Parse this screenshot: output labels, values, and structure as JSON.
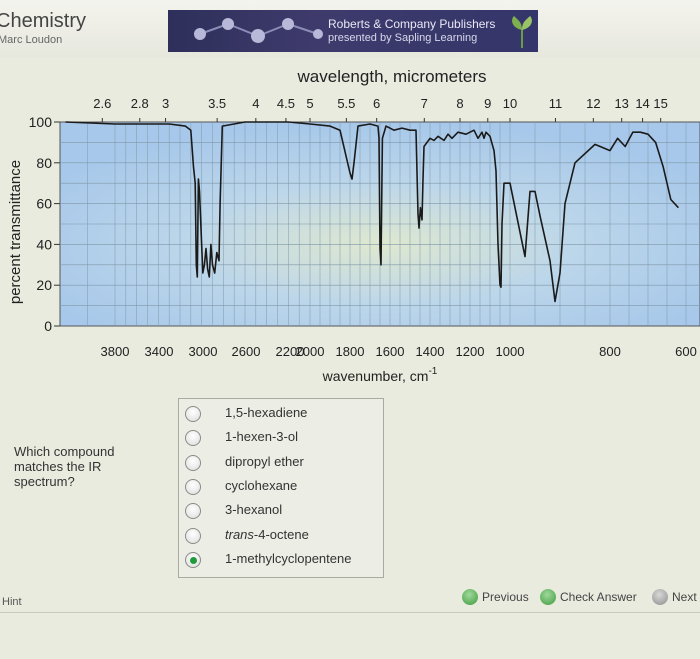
{
  "header": {
    "book_title": "Chemistry",
    "book_author": "Marc Loudon",
    "publisher_line1": "Roberts & Company Publishers",
    "publisher_line2": "presented by Sapling Learning",
    "logo_icon": "leaf-icon"
  },
  "chart_data": {
    "type": "line",
    "title": "",
    "top_axis_label": "wavelength, micrometers",
    "top_ticks": [
      "2.6",
      "2.8",
      "3",
      "3.5",
      "4",
      "4.5",
      "5",
      "5.5",
      "6",
      "7",
      "8",
      "9",
      "10",
      "11",
      "12",
      "13",
      "14",
      "15"
    ],
    "xlabel": "wavenumber, cm",
    "xlabel_superscript": "-1",
    "x_ticks": [
      "3800",
      "3400",
      "3000",
      "2600",
      "2200",
      "2000",
      "1800",
      "1600",
      "1400",
      "1200",
      "1000",
      "800",
      "600"
    ],
    "ylabel": "percent transmittance",
    "y_ticks": [
      "100",
      "80",
      "60",
      "40",
      "20",
      "0"
    ],
    "ylim": [
      0,
      100
    ],
    "grid": true,
    "series": [
      {
        "values_note": "estimated from plot",
        "points": [
          [
            3980,
            100
          ],
          [
            3800,
            99
          ],
          [
            3500,
            99
          ],
          [
            3300,
            99
          ],
          [
            3150,
            98
          ],
          [
            3100,
            96
          ],
          [
            3075,
            78
          ],
          [
            3060,
            70
          ],
          [
            3050,
            30
          ],
          [
            3040,
            24
          ],
          [
            3030,
            72
          ],
          [
            3020,
            66
          ],
          [
            2990,
            26
          ],
          [
            2975,
            30
          ],
          [
            2960,
            38
          ],
          [
            2945,
            28
          ],
          [
            2930,
            24
          ],
          [
            2915,
            40
          ],
          [
            2900,
            30
          ],
          [
            2880,
            26
          ],
          [
            2860,
            36
          ],
          [
            2840,
            32
          ],
          [
            2830,
            60
          ],
          [
            2810,
            98
          ],
          [
            2600,
            100
          ],
          [
            2200,
            100
          ],
          [
            2000,
            99
          ],
          [
            1900,
            98
          ],
          [
            1850,
            96
          ],
          [
            1800,
            75
          ],
          [
            1790,
            72
          ],
          [
            1780,
            80
          ],
          [
            1760,
            98
          ],
          [
            1700,
            99
          ],
          [
            1660,
            98
          ],
          [
            1655,
            92
          ],
          [
            1650,
            38
          ],
          [
            1645,
            30
          ],
          [
            1638,
            92
          ],
          [
            1620,
            98
          ],
          [
            1580,
            96
          ],
          [
            1540,
            97
          ],
          [
            1500,
            96
          ],
          [
            1470,
            96
          ],
          [
            1460,
            55
          ],
          [
            1455,
            48
          ],
          [
            1448,
            58
          ],
          [
            1440,
            52
          ],
          [
            1435,
            72
          ],
          [
            1430,
            88
          ],
          [
            1400,
            92
          ],
          [
            1380,
            91
          ],
          [
            1360,
            93
          ],
          [
            1330,
            91
          ],
          [
            1310,
            94
          ],
          [
            1290,
            92
          ],
          [
            1260,
            95
          ],
          [
            1220,
            94
          ],
          [
            1180,
            96
          ],
          [
            1160,
            92
          ],
          [
            1140,
            95
          ],
          [
            1130,
            92
          ],
          [
            1120,
            95
          ],
          [
            1100,
            93
          ],
          [
            1080,
            86
          ],
          [
            1070,
            76
          ],
          [
            1060,
            40
          ],
          [
            1050,
            20
          ],
          [
            1045,
            19
          ],
          [
            1040,
            50
          ],
          [
            1030,
            70
          ],
          [
            1000,
            70
          ],
          [
            980,
            46
          ],
          [
            970,
            34
          ],
          [
            960,
            66
          ],
          [
            950,
            66
          ],
          [
            940,
            54
          ],
          [
            920,
            32
          ],
          [
            910,
            12
          ],
          [
            900,
            26
          ],
          [
            890,
            60
          ],
          [
            870,
            80
          ],
          [
            830,
            89
          ],
          [
            800,
            86
          ],
          [
            780,
            92
          ],
          [
            760,
            88
          ],
          [
            740,
            95
          ],
          [
            720,
            95
          ],
          [
            700,
            94
          ],
          [
            680,
            90
          ],
          [
            660,
            78
          ],
          [
            640,
            62
          ],
          [
            620,
            58
          ]
        ]
      }
    ]
  },
  "question": {
    "prompt": "Which compound matches the IR spectrum?",
    "choices": [
      {
        "label": "1,5-hexadiene",
        "italic_prefix": "",
        "selected": false
      },
      {
        "label": "1-hexen-3-ol",
        "italic_prefix": "",
        "selected": false
      },
      {
        "label": "dipropyl ether",
        "italic_prefix": "",
        "selected": false
      },
      {
        "label": "cyclohexane",
        "italic_prefix": "",
        "selected": false
      },
      {
        "label": "3-hexanol",
        "italic_prefix": "",
        "selected": false
      },
      {
        "label": "-4-octene",
        "italic_prefix": "trans",
        "selected": false
      },
      {
        "label": "1-methylcyclopentene",
        "italic_prefix": "",
        "selected": true
      }
    ]
  },
  "footer": {
    "hint_label": "Hint",
    "previous_label": "Previous",
    "check_label": "Check Answer",
    "next_label": "Next"
  },
  "colors": {
    "plot_line": "#1a1a1a",
    "accent_green": "#3e9a3f"
  }
}
